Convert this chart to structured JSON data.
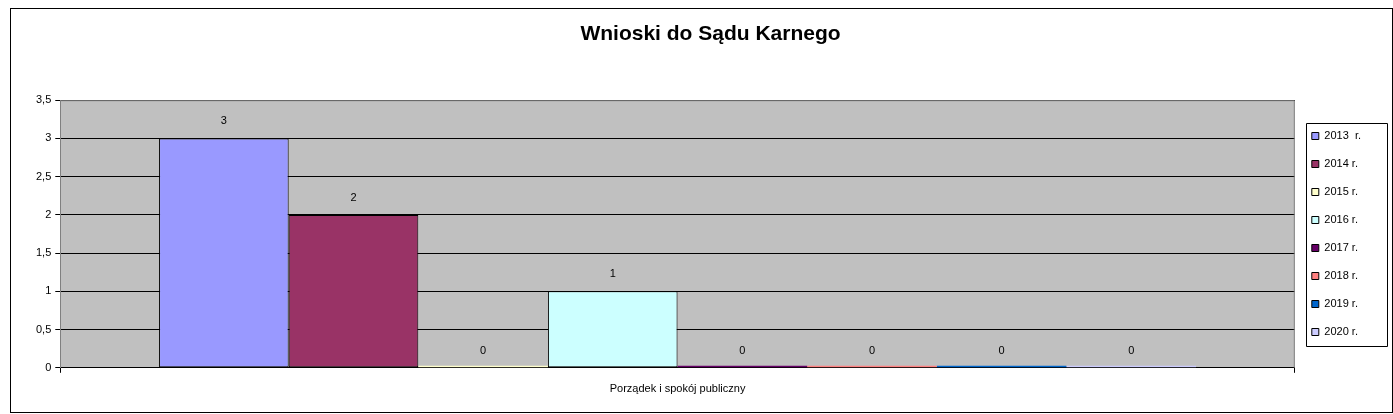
{
  "chart_data": {
    "type": "bar",
    "title": "Wnioski do Sądu Karnego",
    "categories": [
      "Porządek i spokój publiczny"
    ],
    "series": [
      {
        "name": "2013  r.",
        "color": "#9999ff",
        "values": [
          3
        ]
      },
      {
        "name": "2014 r.",
        "color": "#993366",
        "values": [
          2
        ]
      },
      {
        "name": "2015 r.",
        "color": "#ffffcc",
        "values": [
          0
        ]
      },
      {
        "name": "2016 r.",
        "color": "#ccffff",
        "values": [
          1
        ]
      },
      {
        "name": "2017 r.",
        "color": "#660066",
        "values": [
          0
        ]
      },
      {
        "name": "2018 r.",
        "color": "#ff8080",
        "values": [
          0
        ]
      },
      {
        "name": "2019 r.",
        "color": "#0066cc",
        "values": [
          0
        ]
      },
      {
        "name": "2020 r.",
        "color": "#ccccff",
        "values": [
          0
        ]
      }
    ],
    "ylim": [
      0,
      3.5
    ],
    "yticks": [
      0,
      {
        "value": 0.5,
        "label": "0,5"
      },
      1,
      {
        "value": 1.5,
        "label": "1,5"
      },
      2,
      {
        "value": 2.5,
        "label": "2,5"
      },
      3,
      {
        "value": 3.5,
        "label": "3,5"
      }
    ],
    "grid": "y",
    "legend": "right",
    "data_labels": true
  }
}
